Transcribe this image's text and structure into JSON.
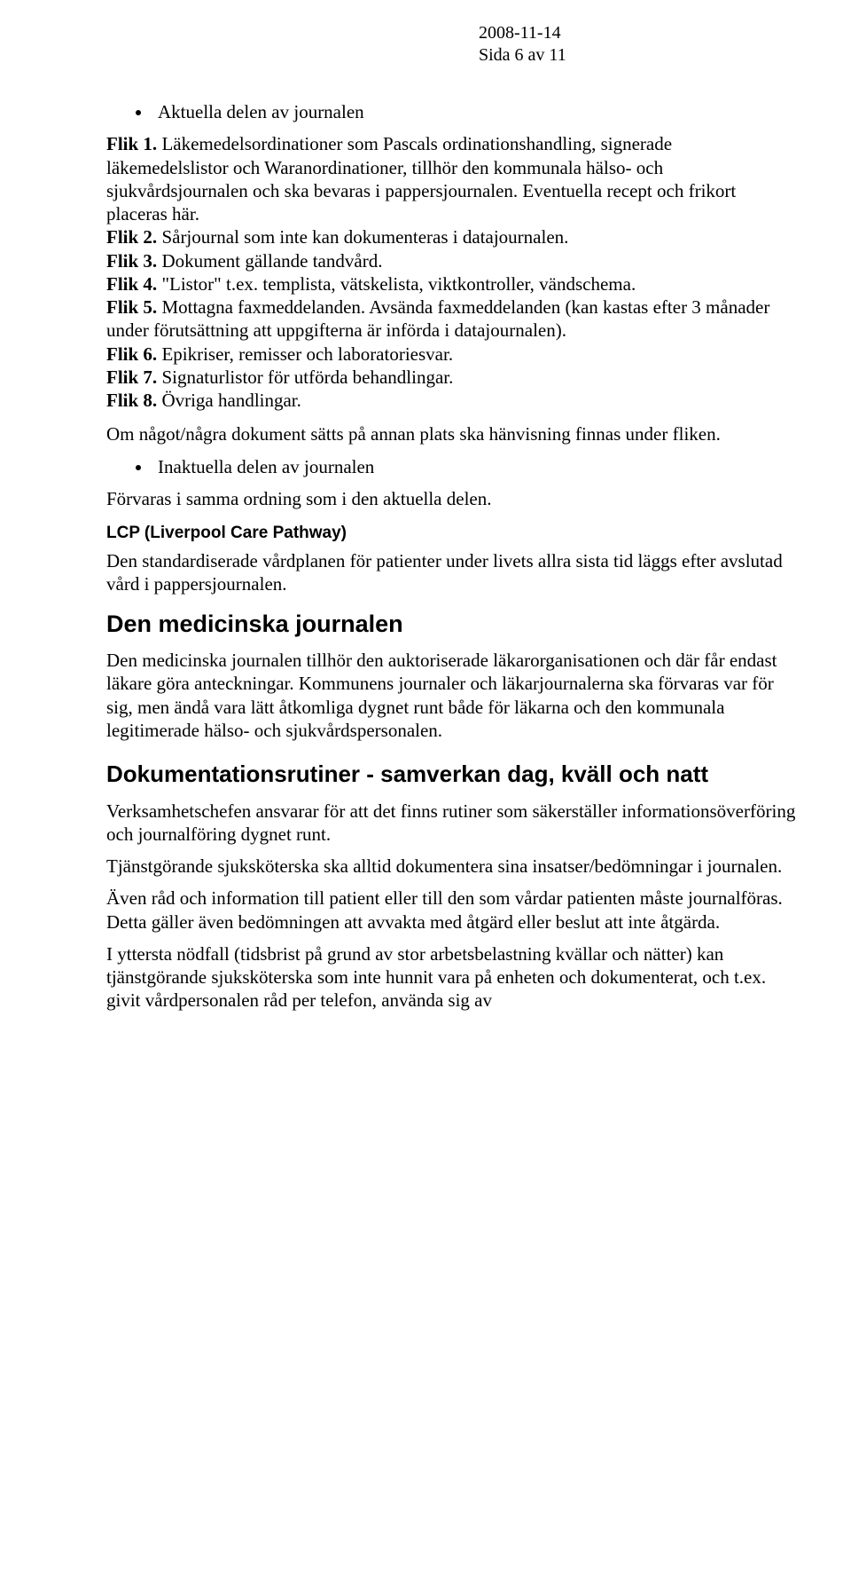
{
  "header": {
    "date": "2008-11-14",
    "page_label": "Sida 6 av 11"
  },
  "bullet1": "Aktuella delen av journalen",
  "flik1_label": "Flik 1.",
  "flik1_text": " Läkemedelsordinationer som Pascals ordinationshandling, signerade läkemedelslistor och Waranordinationer, tillhör den kommunala hälso- och sjukvårdsjournalen och ska bevaras i pappersjournalen. Eventuella recept och frikort placeras här.",
  "flik2_label": "Flik 2.",
  "flik2_text": " Sårjournal som inte kan dokumenteras i datajournalen.",
  "flik3_label": "Flik 3.",
  "flik3_text": " Dokument gällande tandvård.",
  "flik4_label": "Flik 4.",
  "flik4_text": " \"Listor\" t.ex. templista, vätskelista, viktkontroller, vändschema.",
  "flik5_label": "Flik 5.",
  "flik5_text": " Mottagna faxmeddelanden. Avsända faxmeddelanden (kan kastas efter 3 månader under förutsättning att uppgifterna är införda i datajournalen).",
  "flik6_label": "Flik 6.",
  "flik6_text": " Epikriser, remisser och laboratoriesvar.",
  "flik7_label": "Flik 7.",
  "flik7_text": " Signaturlistor för utförda behandlingar.",
  "flik8_label": "Flik 8.",
  "flik8_text": " Övriga handlingar.",
  "para_om": "Om något/några dokument sätts på annan plats ska hänvisning finnas under fliken.",
  "bullet2": "Inaktuella delen av journalen",
  "para_forvaras": "Förvaras i samma ordning som i den aktuella delen.",
  "lcp_heading": "LCP (Liverpool Care Pathway)",
  "lcp_text": "Den standardiserade vårdplanen för patienter under livets allra sista tid läggs efter avslutad vård i pappersjournalen.",
  "med_heading": "Den medicinska journalen",
  "med_text": "Den medicinska journalen tillhör den auktoriserade läkarorganisationen och där får endast läkare göra anteckningar. Kommunens journaler och läkarjournalerna ska förvaras var för sig, men ändå vara lätt åtkomliga dygnet runt både för läkarna och den kommunala legitimerade hälso- och sjukvårdspersonalen.",
  "dok_heading": "Dokumentationsrutiner - samverkan dag, kväll och natt",
  "dok_p1": "Verksamhetschefen ansvarar för att det finns rutiner som säkerställer informationsöverföring och journalföring dygnet runt.",
  "dok_p2": "Tjänstgörande sjuksköterska ska alltid dokumentera sina insatser/bedömningar i journalen.",
  "dok_p3": "Även råd och information till patient eller till den som vårdar patienten måste journalföras. Detta gäller även bedömningen att avvakta med åtgärd eller beslut att inte åtgärda.",
  "dok_p4": "I yttersta nödfall (tidsbrist på grund av stor arbetsbelastning kvällar och nätter) kan tjänstgörande sjuksköterska som inte hunnit vara på enheten och dokumenterat, och t.ex. givit vårdpersonalen råd per telefon, använda sig av"
}
